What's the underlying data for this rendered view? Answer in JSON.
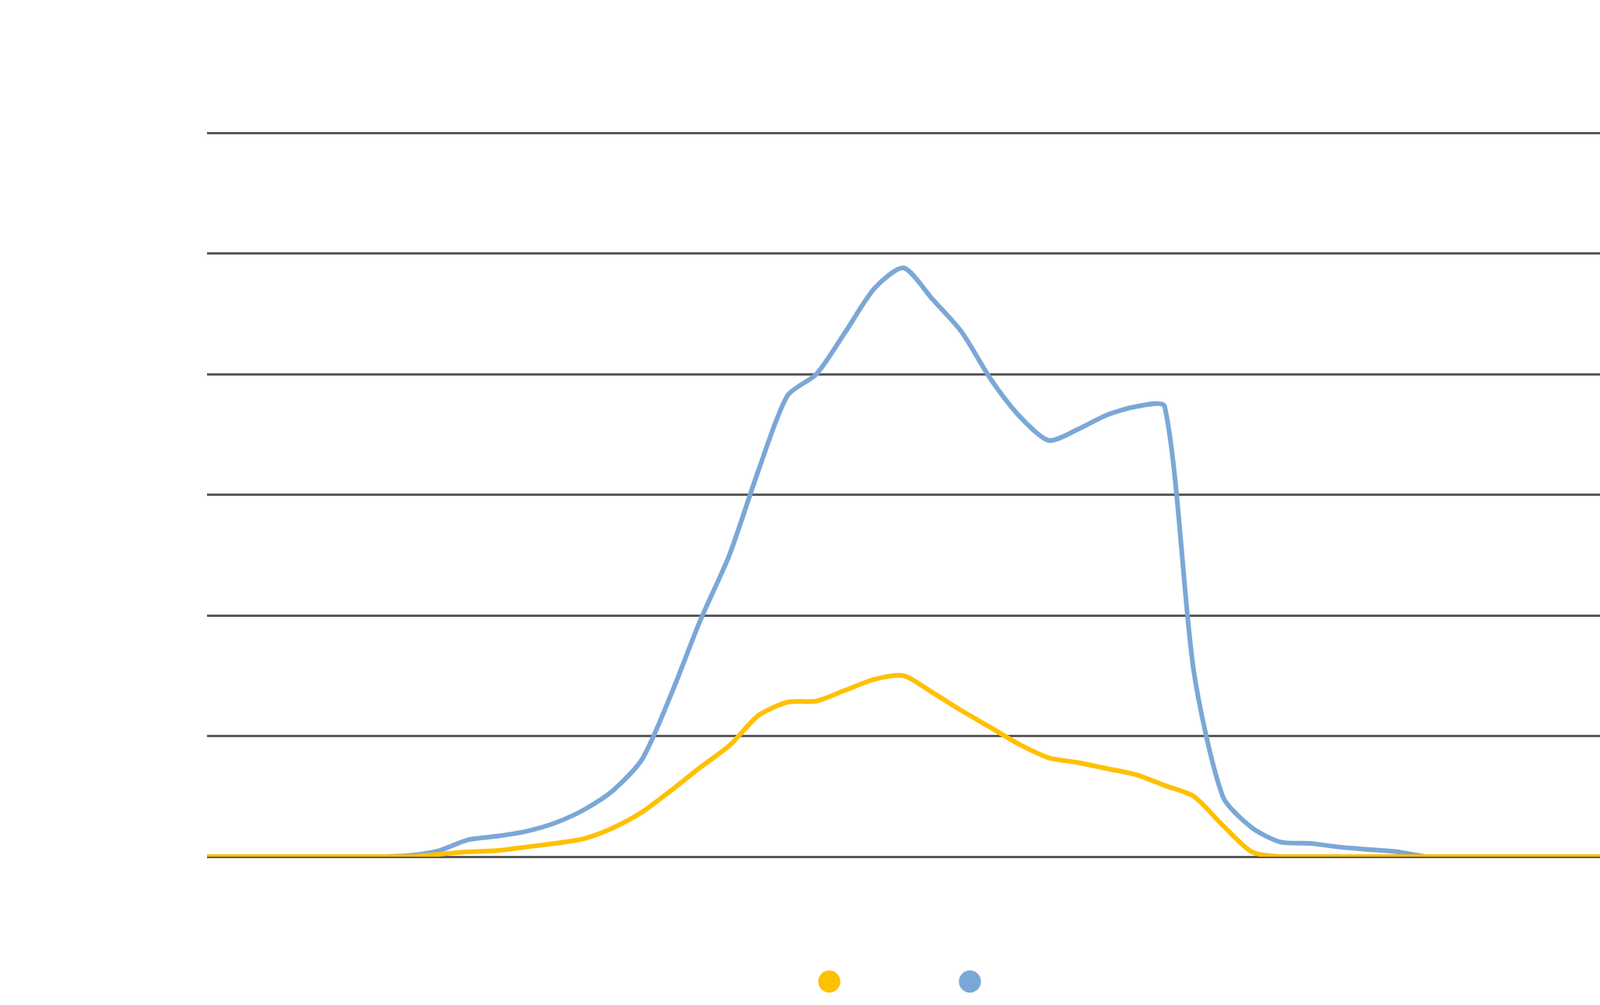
{
  "chart_data": {
    "type": "line",
    "categories": [
      null,
      null,
      null,
      null,
      null,
      null,
      null,
      null,
      null,
      null,
      null,
      null,
      null,
      null,
      null,
      null,
      null,
      null,
      null,
      null,
      null,
      null,
      null,
      null,
      null,
      null,
      null,
      null,
      null,
      null,
      null,
      null,
      null,
      null,
      null,
      null,
      null,
      null,
      null,
      null,
      null,
      null,
      null,
      null,
      null,
      null,
      null,
      null,
      null
    ],
    "series": [
      {
        "color": "#ffc000",
        "values": [
          0,
          0,
          0,
          0,
          0,
          0,
          0,
          0,
          0.2,
          0.4,
          0.5,
          0.8,
          1.1,
          1.5,
          2.4,
          3.7,
          5.5,
          7.4,
          9.2,
          11.7,
          12.8,
          12.9,
          13.8,
          14.7,
          15.0,
          13.6,
          12.1,
          10.7,
          9.3,
          8.2,
          7.8,
          7.3,
          6.8,
          5.9,
          5.0,
          2.6,
          0.4,
          0,
          0,
          0,
          0,
          0,
          0,
          0,
          0,
          0,
          0,
          0,
          0
        ]
      },
      {
        "color": "#7ba7d6",
        "values": [
          0,
          0,
          0,
          0,
          0,
          0,
          0,
          0.1,
          0.5,
          1.4,
          1.7,
          2.1,
          2.8,
          3.9,
          5.5,
          8.1,
          13.5,
          19.6,
          25.0,
          32.0,
          38.2,
          40.0,
          43.5,
          47.1,
          48.8,
          46.2,
          43.5,
          39.6,
          36.5,
          34.5,
          35.4,
          36.6,
          37.3,
          37.3,
          15.4,
          5.0,
          2.4,
          1.2,
          1.1,
          0.8,
          0.6,
          0.4,
          0,
          0,
          0,
          0,
          0,
          0,
          0
        ]
      }
    ],
    "ylim": [
      0,
      60
    ],
    "yticks": [
      0,
      10,
      20,
      30,
      40,
      50,
      60
    ],
    "grid": true,
    "legend": "bottom",
    "tick_labels": false
  }
}
